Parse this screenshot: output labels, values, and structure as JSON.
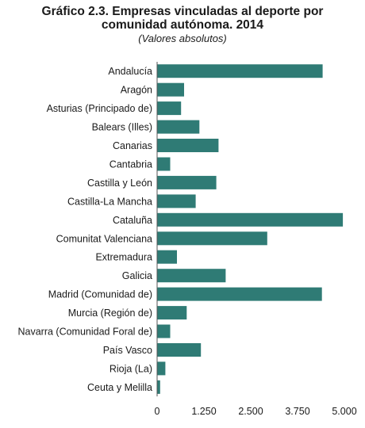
{
  "chart_data": {
    "type": "bar",
    "orientation": "horizontal",
    "title": "Gráfico 2.3. Empresas vinculadas al deporte por comunidad autónoma. 2014",
    "title_line1": "Gráfico 2.3. Empresas vinculadas al deporte por",
    "title_line2": "comunidad autónoma. 2014",
    "subtitle": "(Valores absolutos)",
    "categories": [
      "Andalucía",
      "Aragón",
      "Asturias (Principado de)",
      "Balears (Illes)",
      "Canarias",
      "Cantabria",
      "Castilla y León",
      "Castilla-La Mancha",
      "Cataluña",
      "Comunitat Valenciana",
      "Extremadura",
      "Galicia",
      "Madrid (Comunidad de)",
      "Murcia (Región de)",
      "Navarra (Comunidad Foral de)",
      "País Vasco",
      "Rioja (La)",
      "Ceuta y Melilla"
    ],
    "values": [
      4420,
      720,
      640,
      1130,
      1640,
      350,
      1580,
      1030,
      4960,
      2940,
      530,
      1830,
      4400,
      790,
      350,
      1170,
      220,
      80
    ],
    "xlim": [
      0,
      5000
    ],
    "xticks": [
      0,
      1250,
      2500,
      3750,
      5000
    ],
    "xtick_labels": [
      "0",
      "1.250",
      "2.500",
      "3.750",
      "5.000"
    ],
    "bar_color": "#2f7b75",
    "grid": false,
    "legend": "none"
  }
}
